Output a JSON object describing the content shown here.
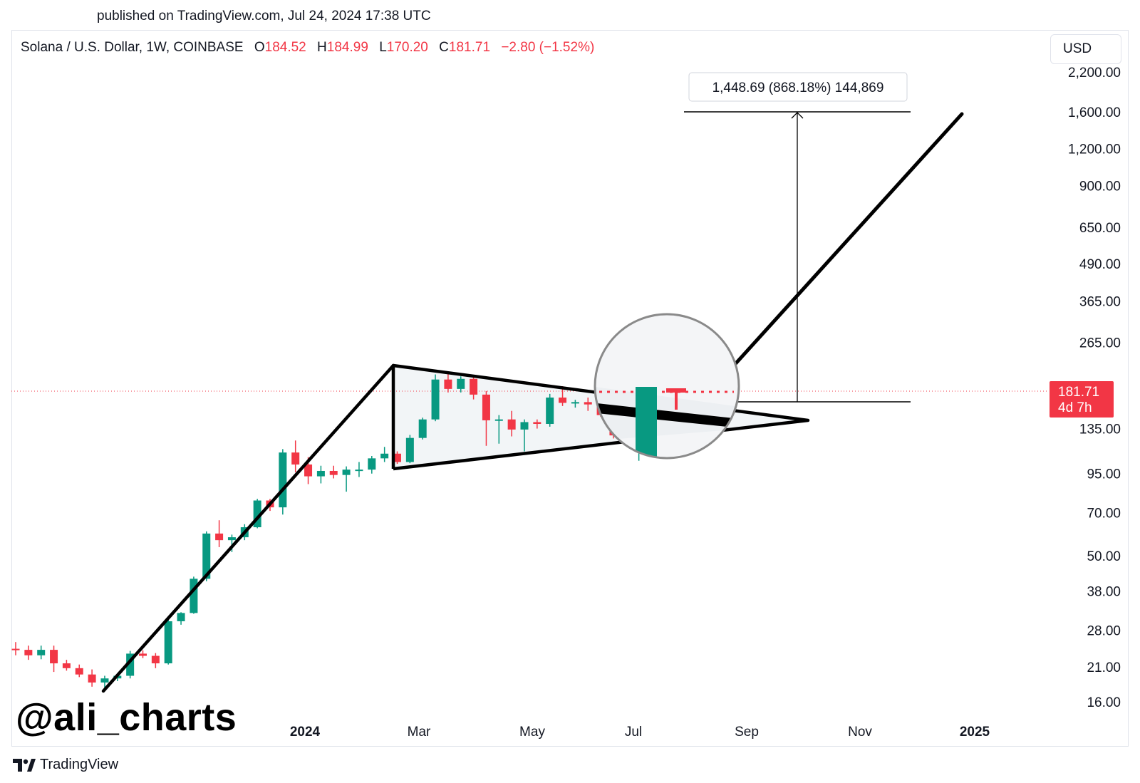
{
  "header": {
    "published": "published on TradingView.com, Jul 24, 2024 17:38 UTC"
  },
  "legend": {
    "symbol": "Solana / U.S. Dollar, 1W, COINBASE",
    "open_label": "O",
    "open": "184.52",
    "high_label": "H",
    "high": "184.99",
    "low_label": "L",
    "low": "170.20",
    "close_label": "C",
    "close": "181.71",
    "change": "−2.80 (−1.52%)"
  },
  "currency_button": {
    "label": "USD"
  },
  "price_tag": {
    "price": "181.71",
    "countdown": "4d 7h"
  },
  "measure": {
    "label": "1,448.69 (868.18%) 144,869"
  },
  "watermark": "@ali_charts",
  "footer": {
    "brand": "TradingView"
  },
  "colors": {
    "up": "#089981",
    "down": "#f23645",
    "line": "#000000",
    "grid": "#e0e3eb"
  },
  "chart_data": {
    "type": "candlestick",
    "scale": "log",
    "y_ticks": [
      "2,200.00",
      "1,600.00",
      "1,200.00",
      "900.00",
      "650.00",
      "490.00",
      "365.00",
      "265.00",
      "135.00",
      "95.00",
      "70.00",
      "50.00",
      "38.00",
      "28.00",
      "21.00",
      "16.00"
    ],
    "x_ticks": [
      {
        "label": "2024",
        "bold": true
      },
      {
        "label": "Mar",
        "bold": false
      },
      {
        "label": "May",
        "bold": false
      },
      {
        "label": "Jul",
        "bold": false
      },
      {
        "label": "Sep",
        "bold": false
      },
      {
        "label": "Nov",
        "bold": false
      },
      {
        "label": "2025",
        "bold": true
      }
    ],
    "candles": [
      {
        "o": 24.2,
        "h": 25.5,
        "l": 23.0,
        "c": 24.0
      },
      {
        "o": 24.0,
        "h": 24.8,
        "l": 22.2,
        "c": 23.0
      },
      {
        "o": 23.0,
        "h": 24.8,
        "l": 22.3,
        "c": 24.0
      },
      {
        "o": 24.0,
        "h": 24.8,
        "l": 20.2,
        "c": 21.6
      },
      {
        "o": 21.6,
        "h": 22.2,
        "l": 20.4,
        "c": 20.8
      },
      {
        "o": 20.8,
        "h": 21.4,
        "l": 19.4,
        "c": 19.8
      },
      {
        "o": 19.8,
        "h": 20.6,
        "l": 18.0,
        "c": 18.6
      },
      {
        "o": 18.6,
        "h": 19.6,
        "l": 17.8,
        "c": 19.2
      },
      {
        "o": 19.2,
        "h": 19.8,
        "l": 18.8,
        "c": 19.6
      },
      {
        "o": 19.6,
        "h": 23.8,
        "l": 19.2,
        "c": 23.3
      },
      {
        "o": 23.3,
        "h": 23.9,
        "l": 22.5,
        "c": 22.9
      },
      {
        "o": 22.9,
        "h": 23.4,
        "l": 20.8,
        "c": 21.6
      },
      {
        "o": 21.6,
        "h": 31.0,
        "l": 21.4,
        "c": 30.0
      },
      {
        "o": 30.0,
        "h": 32.2,
        "l": 29.2,
        "c": 32.0
      },
      {
        "o": 32.0,
        "h": 42.5,
        "l": 31.8,
        "c": 41.8
      },
      {
        "o": 41.8,
        "h": 60.5,
        "l": 41.0,
        "c": 59.5
      },
      {
        "o": 59.5,
        "h": 66.0,
        "l": 53.5,
        "c": 56.5
      },
      {
        "o": 56.5,
        "h": 59.0,
        "l": 51.5,
        "c": 57.8
      },
      {
        "o": 57.8,
        "h": 64.0,
        "l": 56.5,
        "c": 62.5
      },
      {
        "o": 62.5,
        "h": 78.0,
        "l": 62.0,
        "c": 77.0
      },
      {
        "o": 77.0,
        "h": 78.0,
        "l": 71.0,
        "c": 73.0
      },
      {
        "o": 73.0,
        "h": 115.0,
        "l": 69.0,
        "c": 112.0
      },
      {
        "o": 112.0,
        "h": 123.0,
        "l": 96.0,
        "c": 102.0
      },
      {
        "o": 102.0,
        "h": 108.0,
        "l": 87.5,
        "c": 93.0
      },
      {
        "o": 93.0,
        "h": 101.0,
        "l": 88.0,
        "c": 97.0
      },
      {
        "o": 97.0,
        "h": 101.0,
        "l": 91.5,
        "c": 94.0
      },
      {
        "o": 94.0,
        "h": 100.5,
        "l": 82.5,
        "c": 98.0
      },
      {
        "o": 98.0,
        "h": 104.0,
        "l": 92.5,
        "c": 98.0
      },
      {
        "o": 98.0,
        "h": 109.0,
        "l": 95.0,
        "c": 107.0
      },
      {
        "o": 107.0,
        "h": 117.0,
        "l": 104.0,
        "c": 111.0
      },
      {
        "o": 111.0,
        "h": 113.0,
        "l": 102.5,
        "c": 104.0
      },
      {
        "o": 104.0,
        "h": 128.5,
        "l": 103.0,
        "c": 125.5
      },
      {
        "o": 125.5,
        "h": 147.0,
        "l": 124.0,
        "c": 145.0
      },
      {
        "o": 145.0,
        "h": 206.0,
        "l": 143.0,
        "c": 198.0
      },
      {
        "o": 198.0,
        "h": 209.0,
        "l": 179.0,
        "c": 184.0
      },
      {
        "o": 184.0,
        "h": 203.0,
        "l": 179.0,
        "c": 199.0
      },
      {
        "o": 199.0,
        "h": 204.0,
        "l": 169.5,
        "c": 176.0
      },
      {
        "o": 176.0,
        "h": 181.0,
        "l": 118.0,
        "c": 144.0
      },
      {
        "o": 144.0,
        "h": 150.0,
        "l": 120.0,
        "c": 145.0
      },
      {
        "o": 145.0,
        "h": 155.0,
        "l": 127.0,
        "c": 134.0
      },
      {
        "o": 134.0,
        "h": 145.0,
        "l": 113.0,
        "c": 142.0
      },
      {
        "o": 142.0,
        "h": 145.0,
        "l": 135.0,
        "c": 140.0
      },
      {
        "o": 140.0,
        "h": 177.0,
        "l": 137.0,
        "c": 172.0
      },
      {
        "o": 172.0,
        "h": 188.0,
        "l": 161.0,
        "c": 165.0
      },
      {
        "o": 165.0,
        "h": 169.0,
        "l": 159.0,
        "c": 166.0
      },
      {
        "o": 166.0,
        "h": 172.0,
        "l": 155.0,
        "c": 163.0
      },
      {
        "o": 163.0,
        "h": 166.0,
        "l": 148.0,
        "c": 150.0
      },
      {
        "o": 150.0,
        "h": 152.0,
        "l": 125.0,
        "c": 128.0
      },
      {
        "o": 128.0,
        "h": 140.0,
        "l": 122.0,
        "c": 134.0
      },
      {
        "o": 134.0,
        "h": 196.0,
        "l": 105.0,
        "c": 185.0
      },
      {
        "o": 184.52,
        "h": 184.99,
        "l": 170.2,
        "c": 181.71
      }
    ]
  }
}
